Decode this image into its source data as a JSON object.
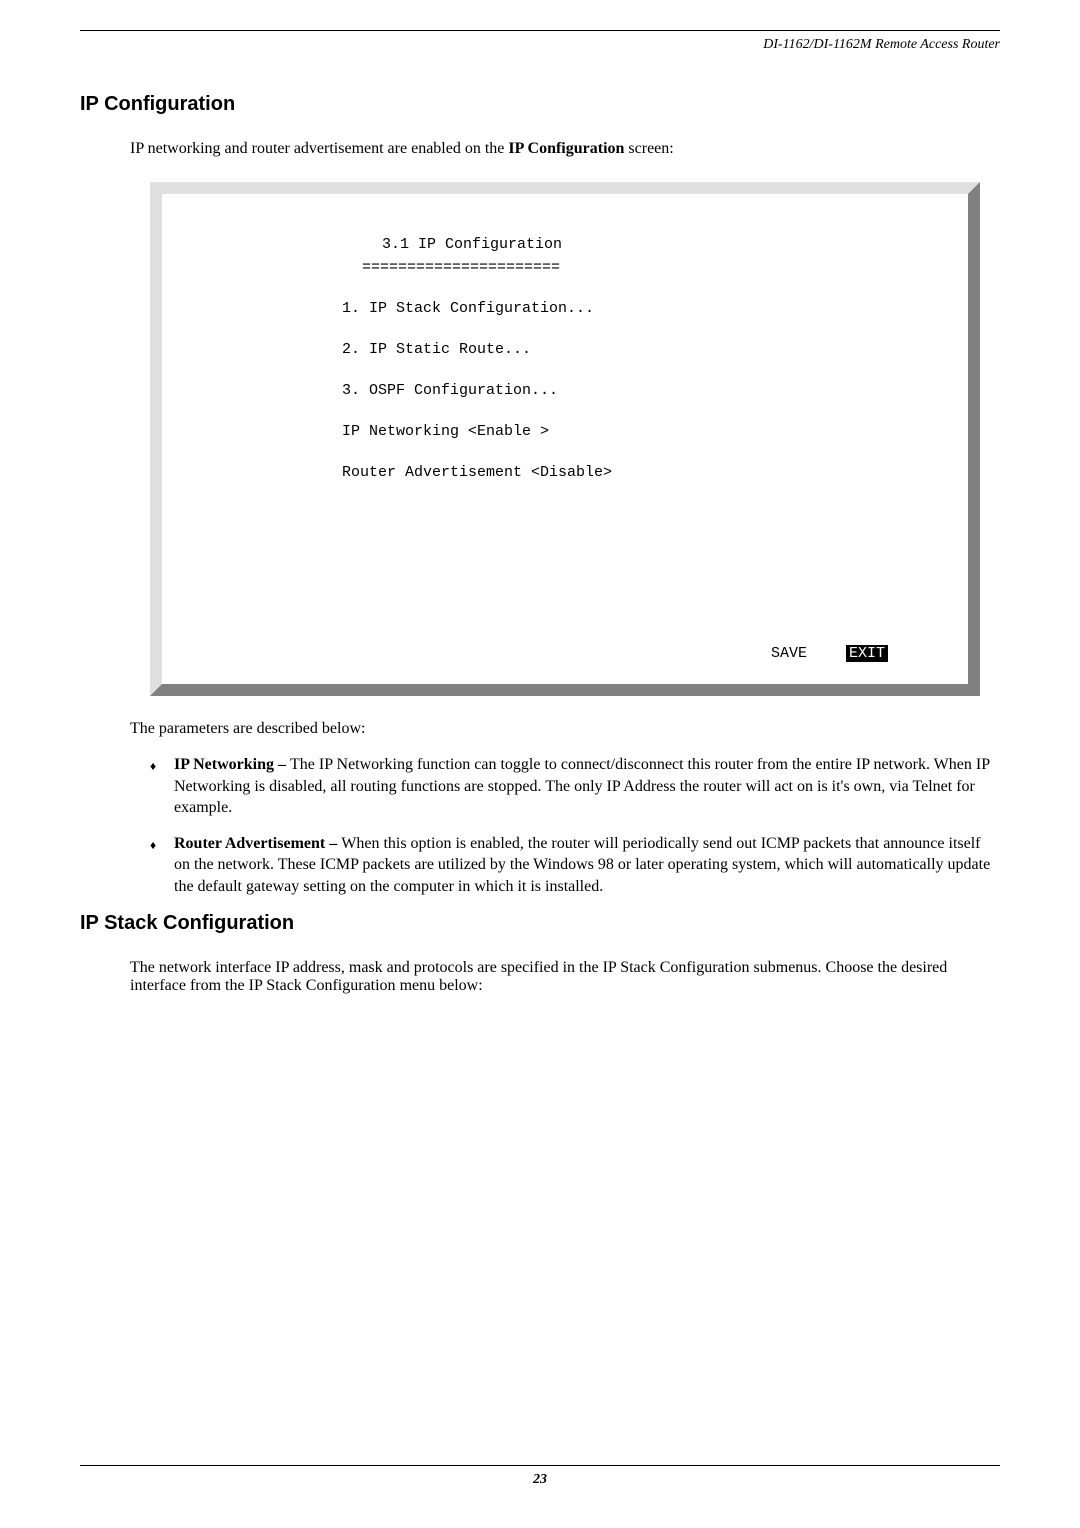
{
  "header": {
    "doc_title": "DI-1162/DI-1162M Remote Access Router"
  },
  "section1": {
    "heading": "IP Configuration",
    "intro_prefix": "IP networking and router advertisement are enabled on the ",
    "intro_bold": "IP Configuration",
    "intro_suffix": " screen:"
  },
  "terminal": {
    "title": "3.1 IP Configuration",
    "underline": "======================",
    "line1": "1. IP Stack Configuration...",
    "line2": "2. IP Static Route...",
    "line3": "3. OSPF Configuration...",
    "line4": "IP Networking       <Enable >",
    "line5": "Router Advertisement <Disable>",
    "save": "SAVE",
    "exit": "EXIT"
  },
  "desc": "The parameters are described below:",
  "bullets": {
    "b1_bold": "IP Networking – ",
    "b1_text": "The IP Networking function can toggle to connect/disconnect this router from the entire IP network. When IP Networking is disabled, all routing functions are stopped. The only IP Address the router will act on is it's own, via Telnet for example.",
    "b2_bold": "Router Advertisement – ",
    "b2_text": "When this option is enabled, the router will periodically send out ICMP packets that announce itself on the network. These ICMP packets are utilized by the Windows 98 or later operating system, which will automatically update the default gateway setting on the computer in which it is installed."
  },
  "section2": {
    "heading": "IP Stack Configuration",
    "para_prefix": "The network interface IP address, mask and protocols are specified in the IP Stack Configuration submenus. Choose the desired interface from the ",
    "para_bold": "IP Stack Configuration",
    "para_suffix": " menu below:"
  },
  "footer": {
    "page": "23"
  }
}
